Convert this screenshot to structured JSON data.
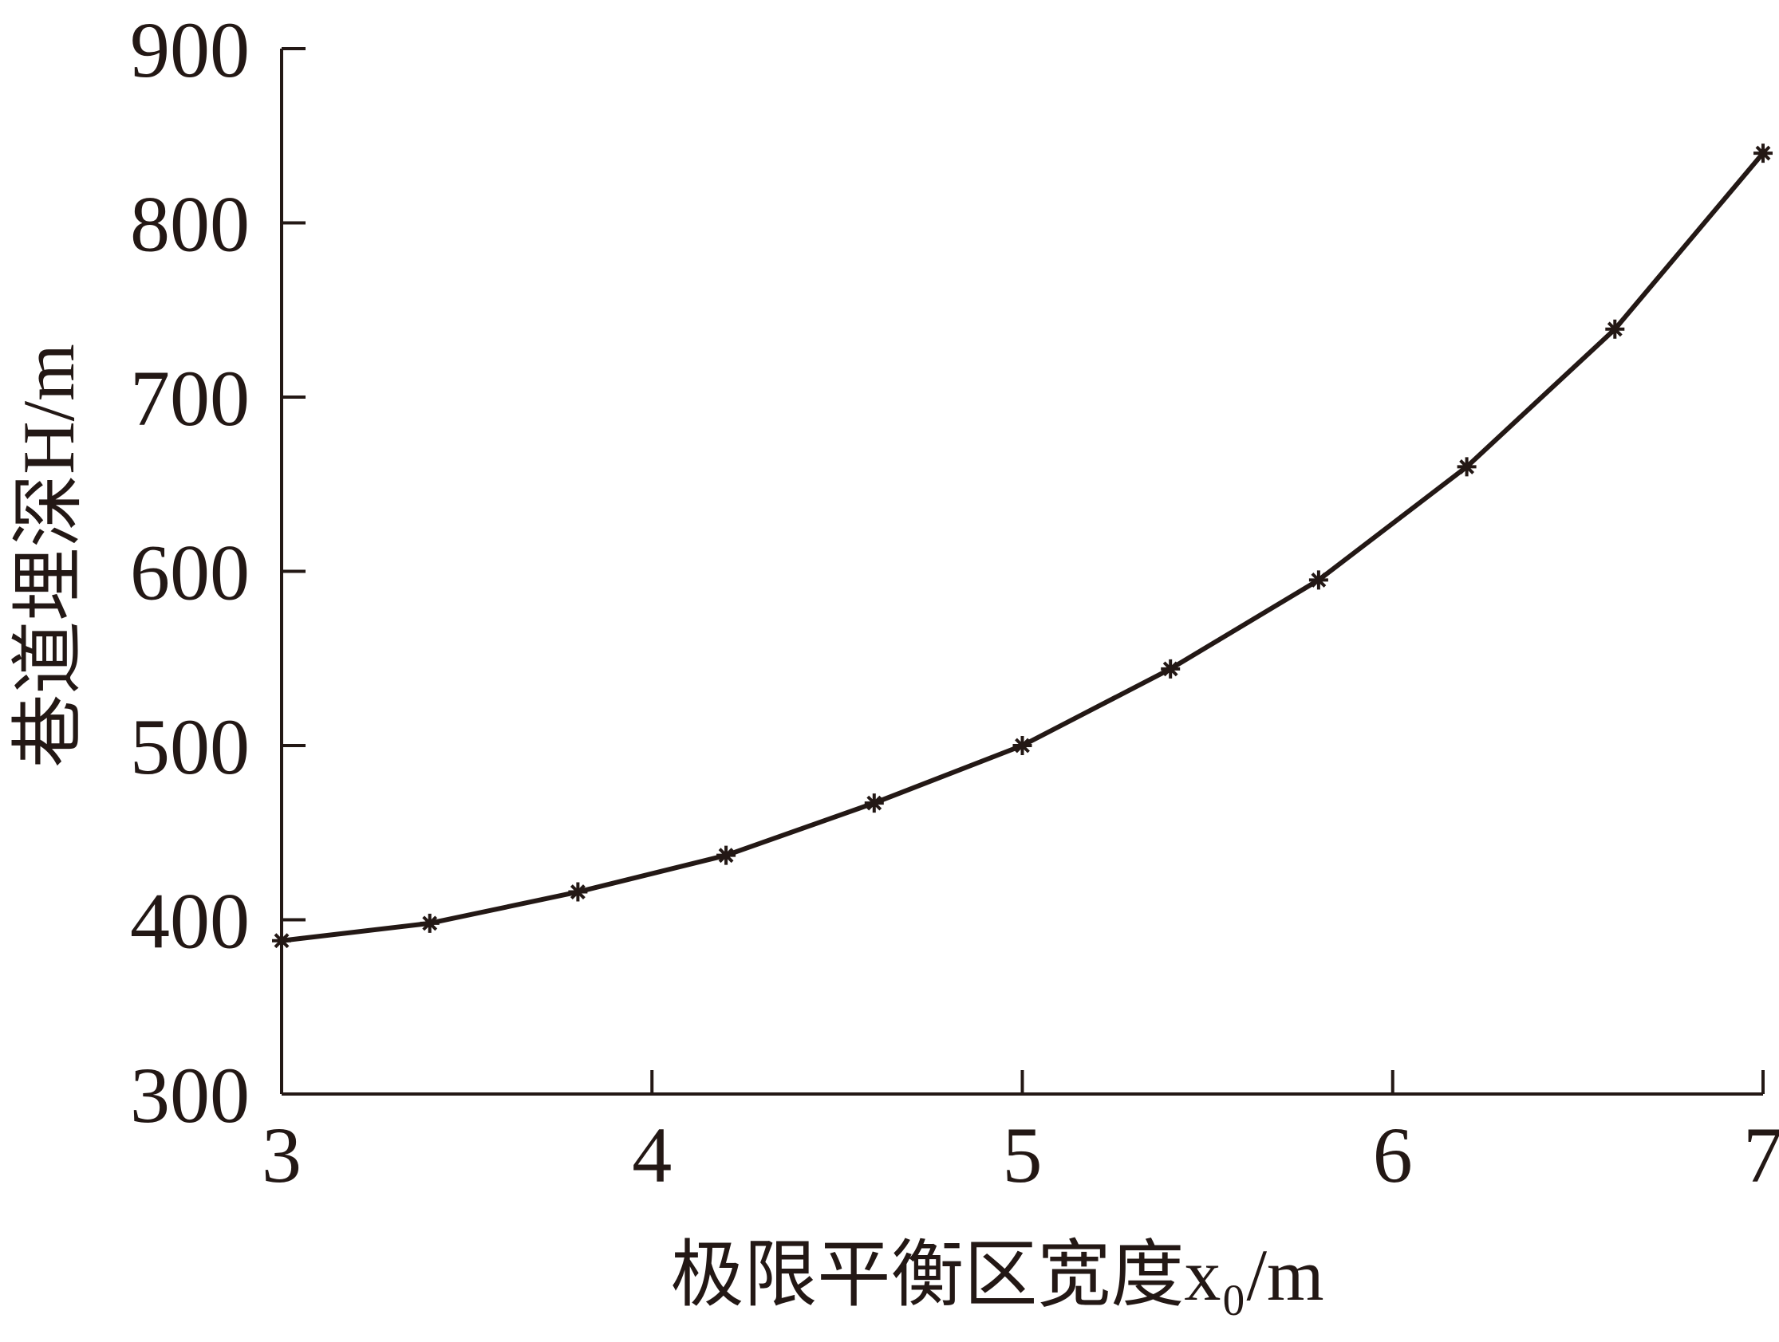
{
  "chart_data": {
    "type": "line",
    "x": [
      3,
      3.4,
      3.8,
      4.2,
      4.6,
      5,
      5.4,
      5.8,
      6.2,
      6.6,
      7
    ],
    "series": [
      {
        "color": "#231815",
        "values": [
          388,
          398,
          416,
          437,
          467,
          500,
          544,
          595,
          660,
          739,
          840
        ]
      }
    ],
    "xlabel": "极限平衡区宽度x₀/m",
    "ylabel": "巷道埋深H/m",
    "xlim": [
      3,
      7
    ],
    "xticks": [
      3,
      4,
      5,
      6,
      7
    ],
    "ylim": [
      300,
      900
    ],
    "yticks": [
      300,
      400,
      500,
      600,
      700,
      800,
      900
    ],
    "grid": false
  }
}
